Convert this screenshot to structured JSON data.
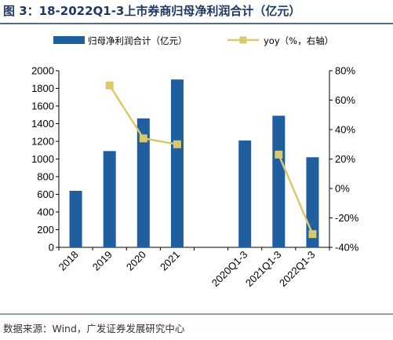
{
  "title": "图 3：18-2022Q1-3上市券商归母净利润合计（亿元）",
  "source": "数据来源：Wind，广发证券发展研究中心",
  "colors": {
    "bar": "#1f5fa0",
    "line": "#d9c96a",
    "title": "#1f3864",
    "rule": "#1f3864"
  },
  "chart_data": {
    "type": "bar",
    "categories": [
      "2018",
      "2019",
      "2020",
      "2021",
      "",
      "2020Q1-3",
      "2021Q1-3",
      "2022Q1-3"
    ],
    "series": [
      {
        "name": "归母净利润合计（亿元）",
        "type": "bar",
        "axis": "left",
        "values": [
          640,
          1090,
          1460,
          1900,
          null,
          1210,
          1490,
          1020
        ]
      },
      {
        "name": "yoy（%，右轴）",
        "type": "line",
        "axis": "right",
        "marker": "square",
        "values": [
          null,
          70,
          34,
          30,
          null,
          null,
          23,
          -31
        ]
      }
    ],
    "y_left": {
      "min": 0,
      "max": 2000,
      "step": 200,
      "ticks": [
        "0",
        "200",
        "400",
        "600",
        "800",
        "1000",
        "1200",
        "1400",
        "1600",
        "1800",
        "2000"
      ]
    },
    "y_right": {
      "min": -40,
      "max": 80,
      "step": 20,
      "ticks": [
        "-40%",
        "-20%",
        "0%",
        "20%",
        "40%",
        "60%",
        "80%"
      ]
    },
    "legend_position": "top",
    "grid": false
  }
}
